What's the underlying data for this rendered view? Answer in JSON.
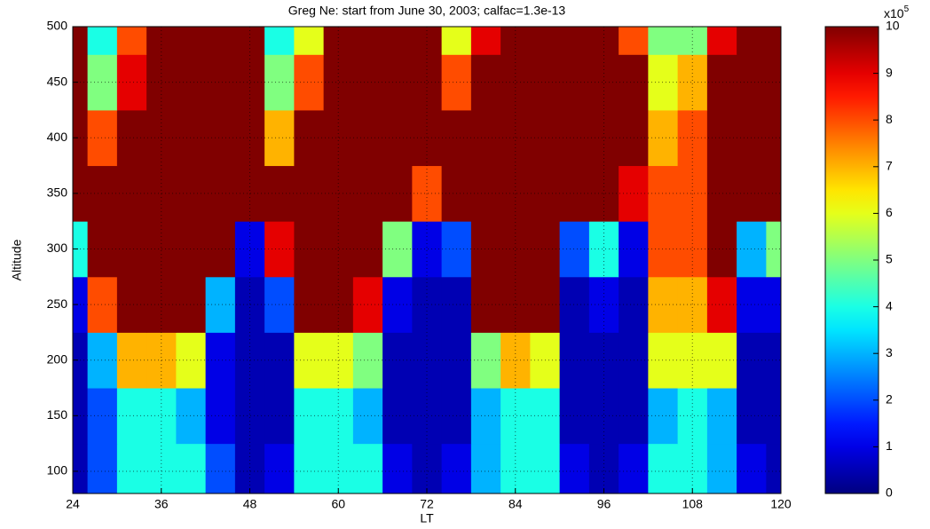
{
  "chart_data": {
    "type": "heatmap",
    "title": "Greg Ne: start from June 30, 2003; calfac=1.3e-13",
    "xlabel": "LT",
    "ylabel": "Altitude",
    "x": [
      24,
      28,
      32,
      36,
      40,
      44,
      48,
      52,
      56,
      60,
      64,
      68,
      72,
      76,
      80,
      84,
      88,
      92,
      96,
      100,
      104,
      108,
      112,
      116,
      120
    ],
    "y": [
      100,
      150,
      200,
      250,
      300,
      350,
      400,
      450,
      500
    ],
    "z": [
      [
        0.5,
        2,
        4,
        4,
        4,
        2,
        0.5,
        1,
        4,
        4,
        4,
        1,
        0.5,
        1,
        3,
        4,
        4,
        1,
        0.5,
        1,
        4,
        4,
        3,
        1,
        0.5
      ],
      [
        0.5,
        2,
        4,
        4,
        3,
        1,
        0.5,
        0.5,
        4,
        4,
        3,
        0.5,
        0.5,
        0.5,
        3,
        4,
        4,
        0.5,
        0.5,
        0.5,
        3,
        4,
        3,
        0.5,
        0.5
      ],
      [
        0.5,
        3,
        7,
        7,
        6,
        1,
        0.5,
        0.5,
        6,
        6,
        5,
        0.5,
        0.5,
        0.5,
        5,
        7,
        6,
        0.5,
        0.5,
        0.5,
        6,
        6,
        6,
        0.5,
        0.5
      ],
      [
        1,
        8,
        10,
        10,
        10,
        3,
        0.5,
        2,
        10,
        10,
        9,
        1,
        0.5,
        0.5,
        10,
        10,
        10,
        0.5,
        1,
        0.5,
        7,
        7,
        9,
        1,
        1
      ],
      [
        4,
        10,
        10,
        10,
        10,
        10,
        1,
        9,
        10,
        10,
        10,
        5,
        1,
        2,
        10,
        10,
        10,
        2,
        4,
        1,
        8,
        8,
        10,
        3,
        5
      ],
      [
        10,
        10,
        10,
        10,
        10,
        10,
        10,
        10,
        10,
        10,
        10,
        10,
        8,
        10,
        10,
        10,
        10,
        10,
        10,
        9,
        8,
        8,
        10,
        10,
        10
      ],
      [
        10,
        8,
        10,
        10,
        10,
        10,
        10,
        7,
        10,
        10,
        10,
        10,
        10,
        10,
        10,
        10,
        10,
        10,
        10,
        10,
        7,
        8,
        10,
        10,
        10
      ],
      [
        10,
        5,
        9,
        10,
        10,
        10,
        10,
        5,
        8,
        10,
        10,
        10,
        10,
        8,
        10,
        10,
        10,
        10,
        10,
        10,
        6,
        7,
        10,
        10,
        10
      ],
      [
        10,
        4,
        8,
        10,
        10,
        10,
        10,
        4,
        6,
        10,
        10,
        10,
        10,
        6,
        9,
        10,
        10,
        10,
        10,
        8,
        5,
        5,
        9,
        10,
        10
      ]
    ],
    "xlim": [
      24,
      120
    ],
    "xticks": [
      24,
      36,
      48,
      60,
      72,
      84,
      96,
      108,
      120
    ],
    "ylim": [
      80,
      500
    ],
    "yticks": [
      100,
      150,
      200,
      250,
      300,
      350,
      400,
      450,
      500
    ],
    "colormap": "jet",
    "clim": [
      0,
      10
    ],
    "cticks": [
      0,
      1,
      2,
      3,
      4,
      5,
      6,
      7,
      8,
      9,
      10
    ],
    "colorbar_scale": {
      "base": "x10",
      "exponent": "5"
    },
    "grid": true
  }
}
